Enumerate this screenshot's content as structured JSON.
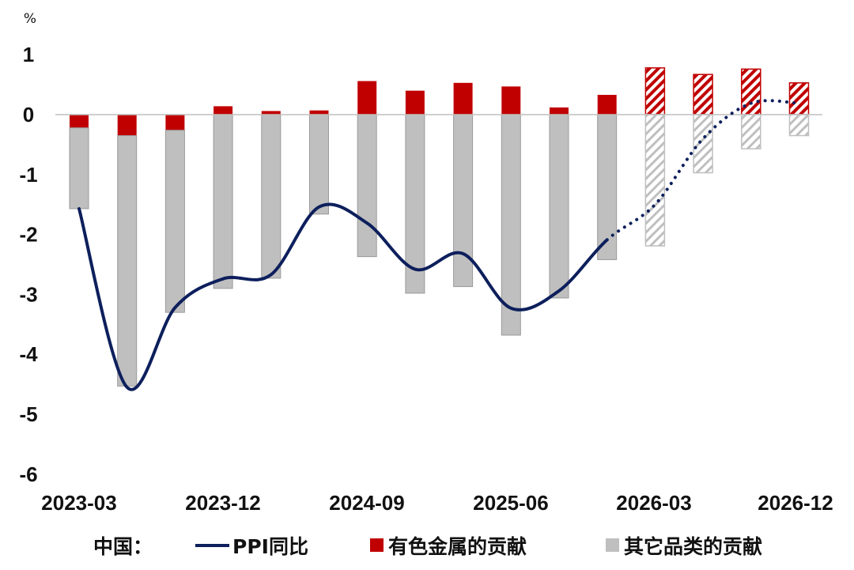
{
  "chart_data": {
    "type": "bar",
    "stacked": true,
    "unit_label": "%",
    "ylim": [
      -6,
      1
    ],
    "y_ticks": [
      1,
      0,
      -1,
      -2,
      -3,
      -4,
      -5,
      -6
    ],
    "x_tick_labels": [
      "2023-03",
      "2023-12",
      "2024-09",
      "2025-06",
      "2026-03",
      "2026-12"
    ],
    "categories": [
      "2023-03",
      "2023-06",
      "2023-09",
      "2023-12",
      "2024-03",
      "2024-06",
      "2024-09",
      "2024-12",
      "2025-03",
      "2025-06",
      "2025-09",
      "2025-12",
      "2026-03",
      "2026-06",
      "2026-09",
      "2026-12"
    ],
    "forecast_start_index": 12,
    "series": [
      {
        "name": "有色金属的贡献",
        "color": "#c00000",
        "values": [
          -0.22,
          -0.35,
          -0.26,
          0.14,
          0.06,
          0.07,
          0.56,
          0.4,
          0.53,
          0.47,
          0.12,
          0.33,
          0.78,
          0.67,
          0.76,
          0.53
        ]
      },
      {
        "name": "其它品类的贡献",
        "color": "#bfbfbf",
        "values": [
          -1.35,
          -4.18,
          -3.04,
          -2.9,
          -2.73,
          -1.66,
          -2.37,
          -2.98,
          -2.87,
          -3.68,
          -3.06,
          -2.42,
          -2.19,
          -0.97,
          -0.57,
          -0.35
        ]
      },
      {
        "name": "PPI同比",
        "color": "#0d1f5c",
        "type": "line",
        "values": [
          -1.57,
          -4.55,
          -3.22,
          -2.74,
          -2.67,
          -1.54,
          -1.81,
          -2.58,
          -2.32,
          -3.23,
          -2.94,
          -2.09,
          -1.5,
          -0.4,
          0.19,
          0.19
        ]
      }
    ],
    "legend": {
      "position": "bottom",
      "prefix": "中国：",
      "items": [
        "PPI同比",
        "有色金属的贡献",
        "其它品类的贡献"
      ]
    },
    "grid": false
  }
}
